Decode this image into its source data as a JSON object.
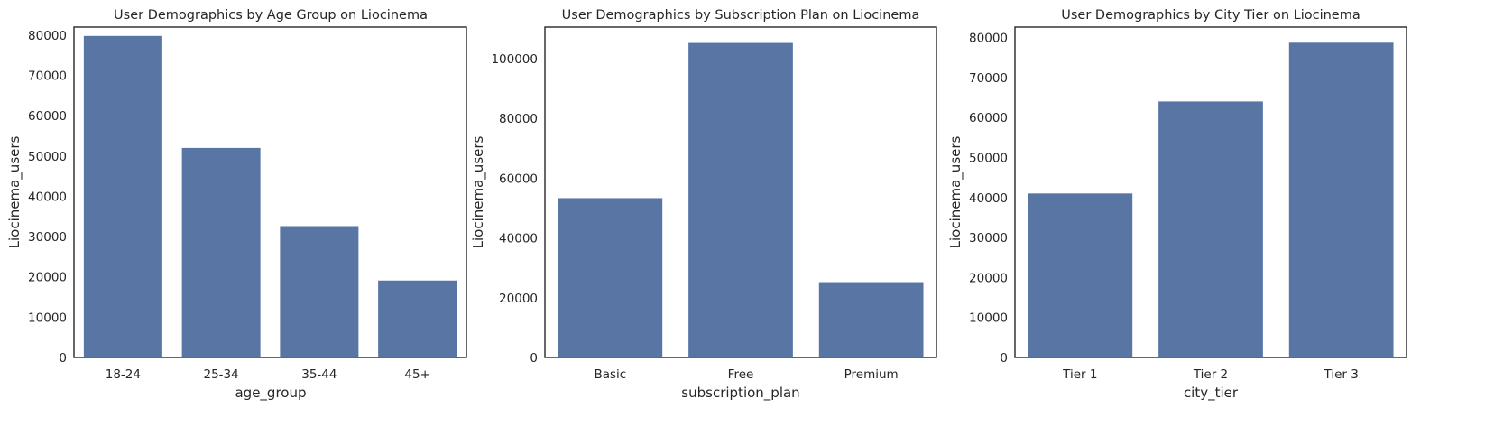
{
  "chart_data": [
    {
      "type": "bar",
      "title": "User Demographics by Age Group on Liocinema",
      "xlabel": "age_group",
      "ylabel": "Liocinema_users",
      "categories": [
        "18-24",
        "25-34",
        "35-44",
        "45+"
      ],
      "values": [
        79800,
        52000,
        32600,
        19100
      ],
      "ylim": [
        0,
        82000
      ],
      "yticks": [
        0,
        10000,
        20000,
        30000,
        40000,
        50000,
        60000,
        70000,
        80000
      ],
      "grid": false,
      "bar_color": "#5875a4"
    },
    {
      "type": "bar",
      "title": "User Demographics by Subscription Plan on Liocinema",
      "xlabel": "subscription_plan",
      "ylabel": "Liocinema_users",
      "categories": [
        "Basic",
        "Free",
        "Premium"
      ],
      "values": [
        53300,
        105200,
        25200
      ],
      "ylim": [
        0,
        110500
      ],
      "yticks": [
        0,
        20000,
        40000,
        60000,
        80000,
        100000
      ],
      "grid": false,
      "bar_color": "#5875a4"
    },
    {
      "type": "bar",
      "title": "User Demographics by City Tier on Liocinema",
      "xlabel": "city_tier",
      "ylabel": "Liocinema_users",
      "categories": [
        "Tier 1",
        "Tier 2",
        "Tier 3"
      ],
      "values": [
        41000,
        64000,
        78700
      ],
      "ylim": [
        0,
        82600
      ],
      "yticks": [
        0,
        10000,
        20000,
        30000,
        40000,
        50000,
        60000,
        70000,
        80000
      ],
      "grid": false,
      "bar_color": "#5875a4"
    }
  ]
}
